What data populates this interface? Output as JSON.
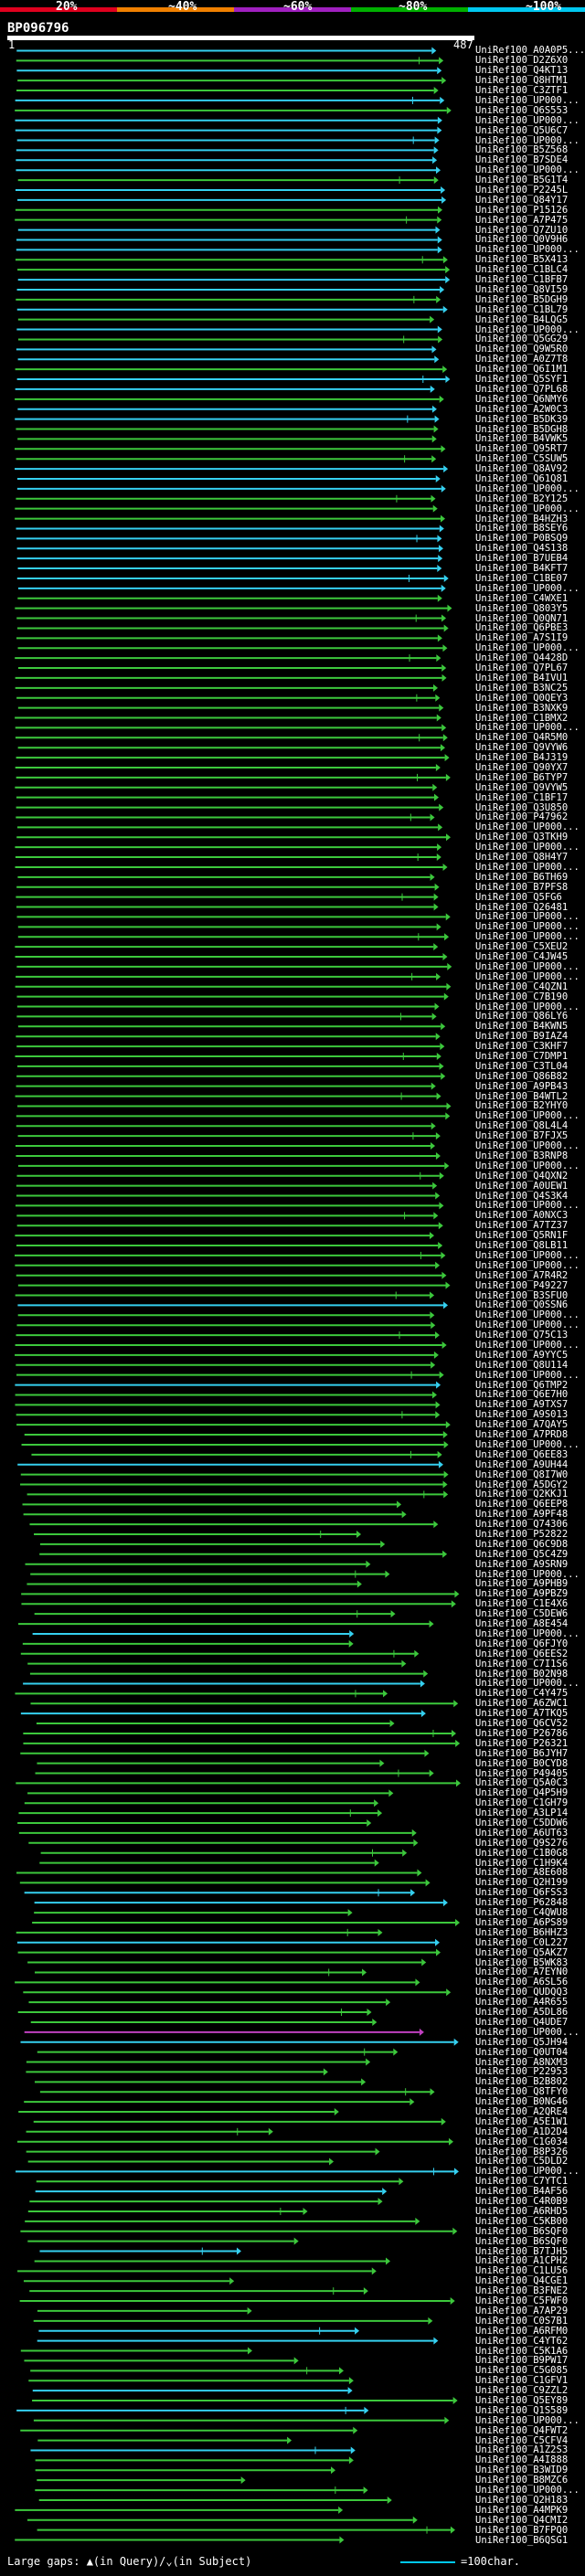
{
  "header": {
    "scale_labels": [
      "20%",
      "~40%",
      "~60%",
      "~80%",
      "~100%"
    ],
    "scale_colors": [
      "#e0001e",
      "#f08000",
      "#a020c0",
      "#00b000",
      "#00c8f0"
    ],
    "query_id": "BP096796",
    "query_start": "1",
    "query_end": "487"
  },
  "colors": {
    "green": "#3cc83c",
    "cyan": "#35d0f0",
    "magenta": "#c040c0",
    "gap": "#ffff00"
  },
  "footer": {
    "gaps_label": "Large gaps: ▲(in Query)/⌄(in Subject)",
    "scale_label": "=100char."
  },
  "hits": [
    "UniRef100_A0A0P5...",
    "UniRef100_D2Z6X0",
    "UniRef100_Q4KT13",
    "UniRef100_Q8HTM1",
    "UniRef100_C3ZTF1",
    "UniRef100_UP000...",
    "UniRef100_Q6S553",
    "UniRef100_UP000...",
    "UniRef100_Q5U6C7",
    "UniRef100_UP000...",
    "UniRef100_B5Z568",
    "UniRef100_B7SDE4",
    "UniRef100_UP000...",
    "UniRef100_B5G1T4",
    "UniRef100_P2245L",
    "UniRef100_Q84Y17",
    "UniRef100_P15126",
    "UniRef100_A7P475",
    "UniRef100_Q7ZU10",
    "UniRef100_Q0V9H6",
    "UniRef100_UP000...",
    "UniRef100_B5X413",
    "UniRef100_C1BLC4",
    "UniRef100_C1BFB7",
    "UniRef100_Q8VI59",
    "UniRef100_B5DGH9",
    "UniRef100_C1BL79",
    "UniRef100_B4LQG5",
    "UniRef100_UP000...",
    "UniRef100_Q5GG29",
    "UniRef100_Q9W5R0",
    "UniRef100_A0Z7T8",
    "UniRef100_Q6I1M1",
    "UniRef100_Q5SYF1",
    "UniRef100_Q7PL68",
    "UniRef100_Q6NMY6",
    "UniRef100_A2W0C3",
    "UniRef100_B5DK39",
    "UniRef100_B5DGH8",
    "UniRef100_B4VWK5",
    "UniRef100_Q95RT7",
    "UniRef100_C5SUW5",
    "UniRef100_Q8AV92",
    "UniRef100_Q61Q81",
    "UniRef100_UP000...",
    "UniRef100_B2Y125",
    "UniRef100_UP000...",
    "UniRef100_B4HZH3",
    "UniRef100_B8SEY6",
    "UniRef100_P0BSQ9",
    "UniRef100_Q4S138",
    "UniRef100_B7UEB4",
    "UniRef100_B4KFT7",
    "UniRef100_C1BE07",
    "UniRef100_UP000...",
    "UniRef100_C4WXE1",
    "UniRef100_Q803Y5",
    "UniRef100_Q0QN71",
    "UniRef100_Q6PBE3",
    "UniRef100_A7S1I9",
    "UniRef100_UP000...",
    "UniRef100_Q4428D",
    "UniRef100_Q7PL67",
    "UniRef100_B4IVU1",
    "UniRef100_B3NC25",
    "UniRef100_Q0QEY3",
    "UniRef100_B3NXK9",
    "UniRef100_C1BMX2",
    "UniRef100_UP000...",
    "UniRef100_Q4R5M0",
    "UniRef100_Q9VYW6",
    "UniRef100_B4J319",
    "UniRef100_Q90YX7",
    "UniRef100_B6TYP7",
    "UniRef100_Q9VYW5",
    "UniRef100_C1BF17",
    "UniRef100_Q3U850",
    "UniRef100_P47962",
    "UniRef100_UP000...",
    "UniRef100_Q3TKH9",
    "UniRef100_UP000...",
    "UniRef100_Q8H4Y7",
    "UniRef100_UP000...",
    "UniRef100_B6TH69",
    "UniRef100_B7PFS8",
    "UniRef100_Q5FG6",
    "UniRef100_Q26481",
    "UniRef100_UP000...",
    "UniRef100_UP000...",
    "UniRef100_UP000...",
    "UniRef100_C5XEU2",
    "UniRef100_C4JW45",
    "UniRef100_UP000...",
    "UniRef100_UP000...",
    "UniRef100_C4QZN1",
    "UniRef100_C7B190",
    "UniRef100_UP000...",
    "UniRef100_Q86LY6",
    "UniRef100_B4KWN5",
    "UniRef100_B9IAZ4",
    "UniRef100_C3KHF7",
    "UniRef100_C7DMP1",
    "UniRef100_C3TL04",
    "UniRef100_Q86B82",
    "UniRef100_A9PB43",
    "UniRef100_B4WTL2",
    "UniRef100_B2YHY0",
    "UniRef100_UP000...",
    "UniRef100_Q8L4L4",
    "UniRef100_B7FJX5",
    "UniRef100_UP000...",
    "UniRef100_B3RNP8",
    "UniRef100_UP000...",
    "UniRef100_Q4QXN2",
    "UniRef100_A0UEW1",
    "UniRef100_Q4S3K4",
    "UniRef100_UP000...",
    "UniRef100_A0NXC3",
    "UniRef100_A7TZ37",
    "UniRef100_Q5RN1F",
    "UniRef100_Q8LB11",
    "UniRef100_UP000...",
    "UniRef100_UP000...",
    "UniRef100_A7R4R2",
    "UniRef100_P49227",
    "UniRef100_B3SFU0",
    "UniRef100_Q0SSN6",
    "UniRef100_UP000...",
    "UniRef100_UP000...",
    "UniRef100_Q75C13",
    "UniRef100_UP000...",
    "UniRef100_A9YYC5",
    "UniRef100_Q8U114",
    "UniRef100_UP000...",
    "UniRef100_Q6TMP2",
    "UniRef100_Q6E7H0",
    "UniRef100_A9TXS7",
    "UniRef100_A9S013",
    "UniRef100_A7QAY5",
    "UniRef100_A7PRD8",
    "UniRef100_UP000...",
    "UniRef100_Q6EE83",
    "UniRef100_A9UH44",
    "UniRef100_Q8I7W0",
    "UniRef100_A5DGY2",
    "UniRef100_Q2KKJ1",
    "UniRef100_Q6EEP8",
    "UniRef100_A9PF48",
    "UniRef100_Q74306",
    "UniRef100_P52822",
    "UniRef100_Q6C9D8",
    "UniRef100_Q5C4Z9",
    "UniRef100_A9SRN9",
    "UniRef100_UP000...",
    "UniRef100_A9PHB9",
    "UniRef100_A9PBZ9",
    "UniRef100_C1E4X6",
    "UniRef100_C5DEW6",
    "UniRef100_A8E454",
    "UniRef100_UP000...",
    "UniRef100_Q6FJY0",
    "UniRef100_Q6EES2",
    "UniRef100_C7I1S6",
    "UniRef100_B02N98",
    "UniRef100_UP000...",
    "UniRef100_C4Y475",
    "UniRef100_A6ZWC1",
    "UniRef100_A7TKQ5",
    "UniRef100_Q6CV52",
    "UniRef100_P26786",
    "UniRef100_P26321",
    "UniRef100_B6JYH7",
    "UniRef100_B0CYD8",
    "UniRef100_P49405",
    "UniRef100_Q5A0C3",
    "UniRef100_Q4P5H9",
    "UniRef100_C1GH79",
    "UniRef100_A3LP14",
    "UniRef100_C5DDW6",
    "UniRef100_A6UT63",
    "UniRef100_Q9S276",
    "UniRef100_C1B0G8",
    "UniRef100_C1H9K4",
    "UniRef100_A8E608",
    "UniRef100_Q2H199",
    "UniRef100_Q6FSS3",
    "UniRef100_P62848",
    "UniRef100_C4QWU8",
    "UniRef100_A6PS89",
    "UniRef100_B6HHZ3",
    "UniRef100_C0L227",
    "UniRef100_Q5AKZ7",
    "UniRef100_B5WK83",
    "UniRef100_A7EYN0",
    "UniRef100_A6SL56",
    "UniRef100_QUDQQ3",
    "UniRef100_A4R655",
    "UniRef100_A5DL86",
    "UniRef100_Q4UDE7",
    "UniRef100_UP000...",
    "UniRef100_Q5JH94",
    "UniRef100_Q0UT04",
    "UniRef100_A8NXM3",
    "UniRef100_P22953",
    "UniRef100_B2B802",
    "UniRef100_Q8TFY0",
    "UniRef100_B0NG46",
    "UniRef100_A2QRE4",
    "UniRef100_A5E1W1",
    "UniRef100_A1D2D4",
    "UniRef100_C1G034",
    "UniRef100_B8P326",
    "UniRef100_C5DLD2",
    "UniRef100_UP000...",
    "UniRef100_C7YTC1",
    "UniRef100_B4AF56",
    "UniRef100_C4R0B9",
    "UniRef100_A6RHD5",
    "UniRef100_C5KB00",
    "UniRef100_B6SQF0",
    "UniRef100_B6SQF0",
    "UniRef100_B7TJH5",
    "UniRef100_A1CPH2",
    "UniRef100_C1LU56",
    "UniRef100_Q4CGE1",
    "UniRef100_B3FNE2",
    "UniRef100_C5FWF0",
    "UniRef100_A7AP29",
    "UniRef100_C0S7B1",
    "UniRef100_A6RFM0",
    "UniRef100_C4YT62",
    "UniRef100_C5K1A6",
    "UniRef100_B9PW17",
    "UniRef100_C5G085",
    "UniRef100_C1GFV1",
    "UniRef100_C9ZZL2",
    "UniRef100_Q5EY89",
    "UniRef100_Q1S589",
    "UniRef100_UP000...",
    "UniRef100_Q4FWT2",
    "UniRef100_C5CFV4",
    "UniRef100_A1Z2S3",
    "UniRef100_A4I888",
    "UniRef100_B3WID9",
    "UniRef100_B8MZC6",
    "UniRef100_UP000...",
    "UniRef100_Q2H183",
    "UniRef100_A4MPK9",
    "UniRef100_Q4CMI2",
    "UniRef100_B7FPQ0",
    "UniRef100_B6QSG1"
  ]
}
